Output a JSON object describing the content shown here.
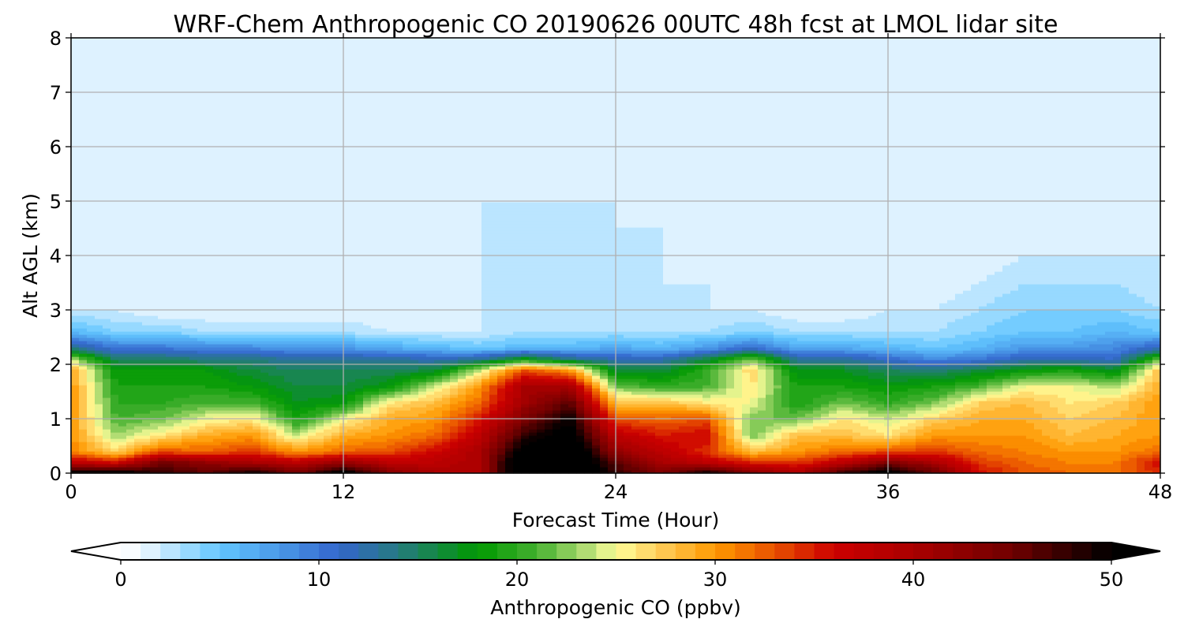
{
  "chart_data": {
    "type": "heatmap",
    "title": "WRF-Chem Anthropogenic CO 20190626 00UTC 48h fcst at LMOL lidar site",
    "xlabel": "Forecast Time (Hour)",
    "ylabel": "Alt AGL (km)",
    "xlim": [
      0,
      48
    ],
    "ylim": [
      0,
      8
    ],
    "xticks": [
      "0",
      "12",
      "24",
      "36",
      "48"
    ],
    "yticks": [
      "0",
      "1",
      "2",
      "3",
      "4",
      "5",
      "6",
      "7",
      "8"
    ],
    "grid": true,
    "colorbar": {
      "label": "Anthropogenic CO  (ppbv)",
      "range": [
        0,
        50
      ],
      "ticks": [
        "0",
        "10",
        "20",
        "30",
        "40",
        "50"
      ],
      "extend": "both",
      "stops": [
        [
          0,
          "#ffffff"
        ],
        [
          1,
          "#f0f8ff"
        ],
        [
          5,
          "#62c6ff"
        ],
        [
          8,
          "#4a98e8"
        ],
        [
          11,
          "#3366cc"
        ],
        [
          14,
          "#267a80"
        ],
        [
          18,
          "#009900"
        ],
        [
          21,
          "#44b030"
        ],
        [
          24,
          "#c8e680"
        ],
        [
          25,
          "#ffff99"
        ],
        [
          27,
          "#ffd060"
        ],
        [
          30,
          "#ff9900"
        ],
        [
          33,
          "#e85000"
        ],
        [
          36,
          "#cc0000"
        ],
        [
          40,
          "#aa0000"
        ],
        [
          45,
          "#700000"
        ],
        [
          50,
          "#000000"
        ]
      ]
    },
    "x": [
      0,
      2,
      4,
      6,
      8,
      10,
      12,
      14,
      16,
      18,
      20,
      22,
      24,
      26,
      28,
      30,
      32,
      34,
      36,
      38,
      40,
      42,
      44,
      46,
      48
    ],
    "y": [
      0,
      0.2,
      0.4,
      0.7,
      1.0,
      1.3,
      1.6,
      1.9,
      2.1,
      2.3,
      2.6,
      3.0,
      3.5,
      4.0,
      4.5,
      5.0,
      6.0,
      8.0
    ],
    "values": [
      [
        52,
        38,
        31,
        30,
        30,
        30,
        30,
        29,
        24,
        14,
        6,
        2,
        1,
        1,
        1,
        1,
        1,
        1
      ],
      [
        52,
        36,
        27,
        23,
        21,
        20,
        19,
        18,
        15,
        10,
        4,
        2,
        1,
        1,
        1,
        1,
        1,
        1
      ],
      [
        48,
        45,
        33,
        26,
        22,
        20,
        19,
        18,
        15,
        10,
        4,
        1,
        1,
        1,
        1,
        1,
        1,
        1
      ],
      [
        46,
        42,
        32,
        29,
        25,
        21,
        19,
        18,
        14,
        9,
        3,
        1,
        1,
        1,
        1,
        1,
        1,
        1
      ],
      [
        50,
        40,
        34,
        30,
        26,
        21,
        18,
        16,
        14,
        9,
        3,
        1,
        1,
        1,
        1,
        1,
        1,
        1
      ],
      [
        45,
        38,
        30,
        24,
        19,
        17,
        16,
        15,
        13,
        8,
        3,
        1,
        1,
        1,
        1,
        1,
        1,
        1
      ],
      [
        52,
        42,
        32,
        29,
        25,
        18,
        16,
        15,
        13,
        8,
        3,
        1,
        1,
        1,
        1,
        1,
        1,
        1
      ],
      [
        44,
        38,
        33,
        30,
        29,
        26,
        18,
        15,
        13,
        7,
        2,
        1,
        1,
        1,
        1,
        1,
        1,
        1
      ],
      [
        40,
        38,
        36,
        32,
        30,
        28,
        24,
        16,
        12,
        6,
        2,
        1,
        1,
        1,
        1,
        1,
        1,
        1
      ],
      [
        40,
        40,
        40,
        38,
        35,
        32,
        30,
        24,
        13,
        5,
        2,
        2,
        2,
        2,
        2,
        2,
        1,
        1
      ],
      [
        55,
        55,
        52,
        48,
        44,
        41,
        40,
        33,
        18,
        6,
        3,
        2,
        2,
        2,
        2,
        2,
        1,
        1
      ],
      [
        55,
        55,
        55,
        52,
        50,
        46,
        40,
        30,
        14,
        6,
        3,
        2,
        2,
        2,
        2,
        2,
        1,
        1
      ],
      [
        48,
        46,
        42,
        38,
        33,
        28,
        22,
        16,
        12,
        7,
        3,
        2,
        2,
        2,
        2,
        2,
        1,
        1
      ],
      [
        44,
        40,
        38,
        35,
        32,
        28,
        20,
        16,
        12,
        6,
        3,
        2,
        2,
        2,
        2,
        1,
        1,
        1
      ],
      [
        50,
        38,
        34,
        36,
        33,
        26,
        21,
        20,
        16,
        8,
        3,
        2,
        2,
        1,
        1,
        1,
        1,
        1
      ],
      [
        44,
        35,
        28,
        22,
        22,
        25,
        26,
        27,
        22,
        11,
        4,
        2,
        1,
        1,
        1,
        1,
        1,
        1
      ],
      [
        40,
        34,
        30,
        28,
        22,
        19,
        19,
        17,
        13,
        7,
        3,
        1,
        1,
        1,
        1,
        1,
        1,
        1
      ],
      [
        48,
        38,
        32,
        28,
        26,
        22,
        19,
        17,
        13,
        7,
        3,
        1,
        1,
        1,
        1,
        1,
        1,
        1
      ],
      [
        52,
        44,
        33,
        26,
        24,
        20,
        18,
        15,
        11,
        6,
        3,
        2,
        1,
        1,
        1,
        1,
        1,
        1
      ],
      [
        46,
        40,
        34,
        30,
        27,
        22,
        19,
        14,
        9,
        5,
        3,
        2,
        1,
        1,
        1,
        1,
        1,
        1
      ],
      [
        36,
        34,
        32,
        30,
        29,
        27,
        21,
        16,
        10,
        6,
        4,
        3,
        2,
        1,
        1,
        1,
        1,
        1
      ],
      [
        33,
        32,
        31,
        30,
        29,
        28,
        25,
        18,
        12,
        8,
        5,
        4,
        3,
        2,
        1,
        1,
        1,
        1
      ],
      [
        32,
        31,
        30,
        28,
        27,
        26,
        25,
        19,
        12,
        8,
        5,
        4,
        3,
        2,
        1,
        1,
        1,
        1
      ],
      [
        32,
        31,
        30,
        29,
        28,
        27,
        23,
        17,
        11,
        9,
        6,
        4,
        3,
        2,
        1,
        1,
        1,
        1
      ],
      [
        34,
        36,
        32,
        30,
        30,
        30,
        29,
        28,
        22,
        12,
        5,
        3,
        2,
        2,
        2,
        1,
        1,
        1
      ]
    ]
  }
}
